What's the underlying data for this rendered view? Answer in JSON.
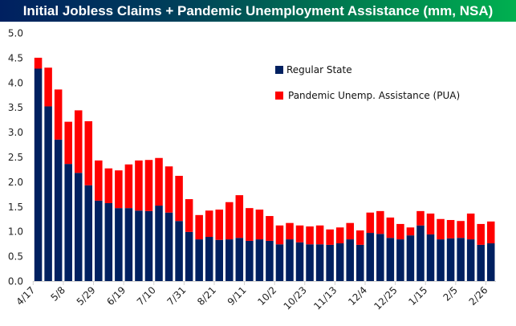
{
  "chart_data": {
    "type": "bar",
    "stacked": true,
    "title": "Initial Jobless Claims + Pandemic Unemployment Assistance (mm, NSA)",
    "xlabel": "",
    "ylabel": "",
    "ylim": [
      0,
      5.0
    ],
    "yticks": [
      "0.0",
      "0.5",
      "1.0",
      "1.5",
      "2.0",
      "2.5",
      "3.0",
      "3.5",
      "4.0",
      "4.5",
      "5.0"
    ],
    "grid": false,
    "legend_position": "top-right",
    "x_tick_labels": [
      "4/17",
      "5/8",
      "5/29",
      "6/19",
      "7/10",
      "7/31",
      "8/21",
      "9/11",
      "10/2",
      "10/23",
      "11/13",
      "12/4",
      "12/25",
      "1/15",
      "2/5",
      "2/26"
    ],
    "label_every": 3,
    "series": [
      {
        "name": "Regular State",
        "color": "#002060",
        "values": [
          4.28,
          3.52,
          2.85,
          2.36,
          2.18,
          1.93,
          1.62,
          1.57,
          1.47,
          1.47,
          1.42,
          1.41,
          1.52,
          1.38,
          1.21,
          0.99,
          0.84,
          0.89,
          0.83,
          0.84,
          0.87,
          0.81,
          0.84,
          0.81,
          0.74,
          0.84,
          0.78,
          0.74,
          0.74,
          0.73,
          0.76,
          0.84,
          0.73,
          0.97,
          0.95,
          0.87,
          0.84,
          0.92,
          1.12,
          0.94,
          0.84,
          0.86,
          0.87,
          0.84,
          0.73,
          0.76
        ]
      },
      {
        "name": "Pandemic Unemp. Assistance (PUA)",
        "color": "#FF0000",
        "values": [
          0.22,
          0.78,
          1.01,
          0.85,
          1.26,
          1.29,
          0.81,
          0.7,
          0.76,
          0.88,
          1.01,
          1.03,
          0.96,
          0.93,
          0.91,
          0.66,
          0.49,
          0.53,
          0.61,
          0.75,
          0.86,
          0.66,
          0.6,
          0.5,
          0.38,
          0.33,
          0.34,
          0.36,
          0.38,
          0.31,
          0.32,
          0.33,
          0.29,
          0.41,
          0.46,
          0.41,
          0.31,
          0.16,
          0.29,
          0.42,
          0.41,
          0.37,
          0.34,
          0.52,
          0.42,
          0.44
        ]
      }
    ]
  }
}
